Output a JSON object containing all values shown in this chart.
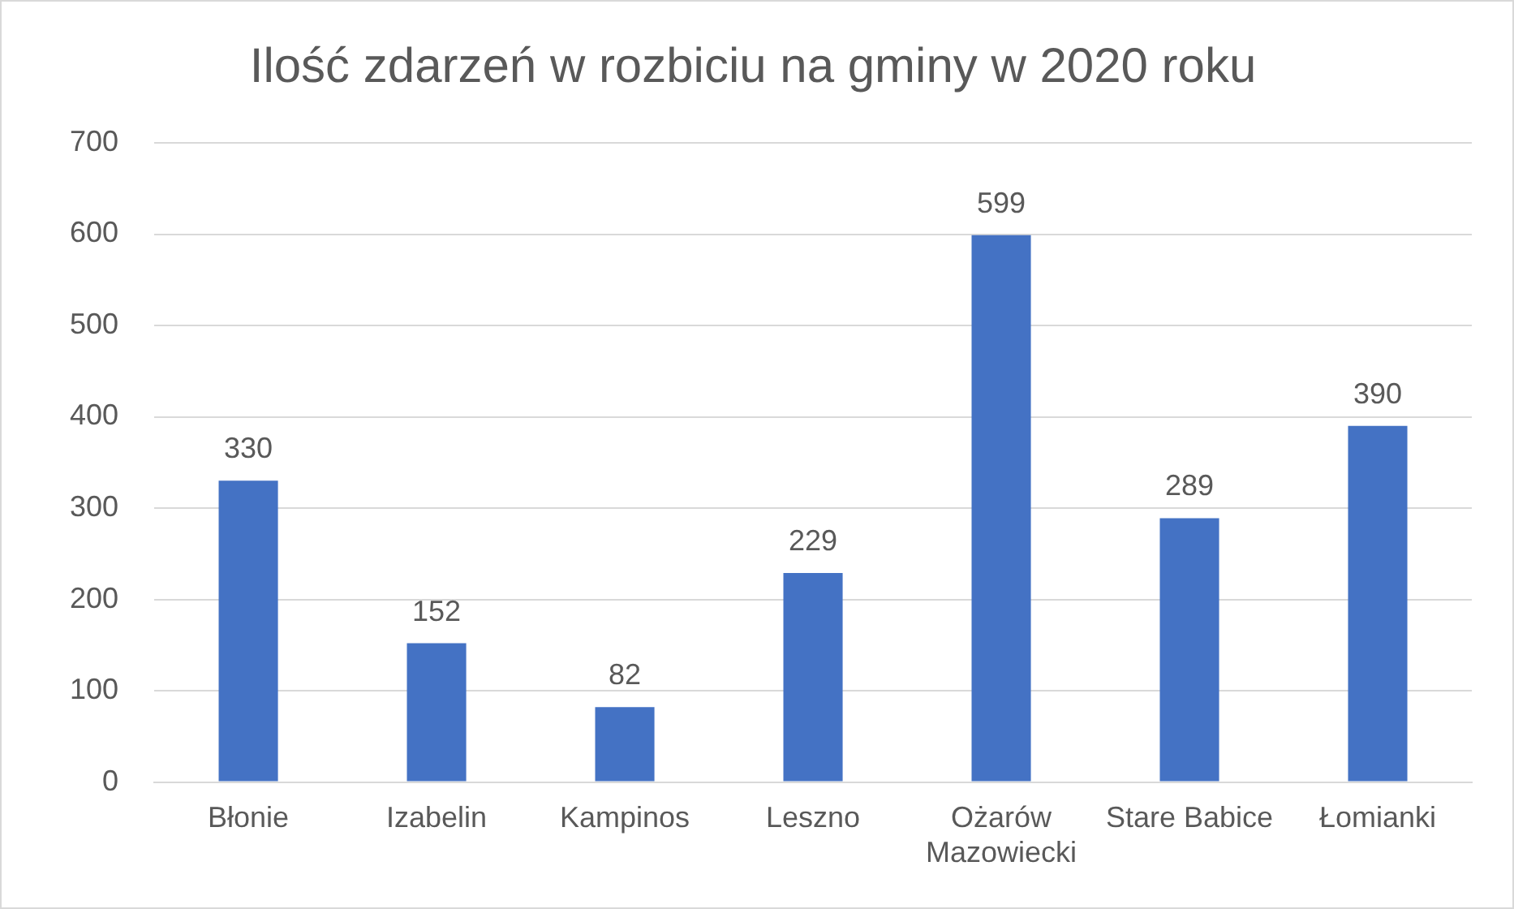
{
  "chart_data": {
    "type": "bar",
    "title": "Ilość zdarzeń w rozbiciu na gminy w 2020 roku",
    "categories": [
      "Błonie",
      "Izabelin",
      "Kampinos",
      "Leszno",
      "Ożarów Mazowiecki",
      "Stare Babice",
      "Łomianki"
    ],
    "values": [
      330,
      152,
      82,
      229,
      599,
      289,
      390
    ],
    "color": "#4472c4",
    "ylim": [
      0,
      700
    ],
    "yticks": [
      0,
      100,
      200,
      300,
      400,
      500,
      600,
      700
    ],
    "grid": "y",
    "data_labels": true
  }
}
